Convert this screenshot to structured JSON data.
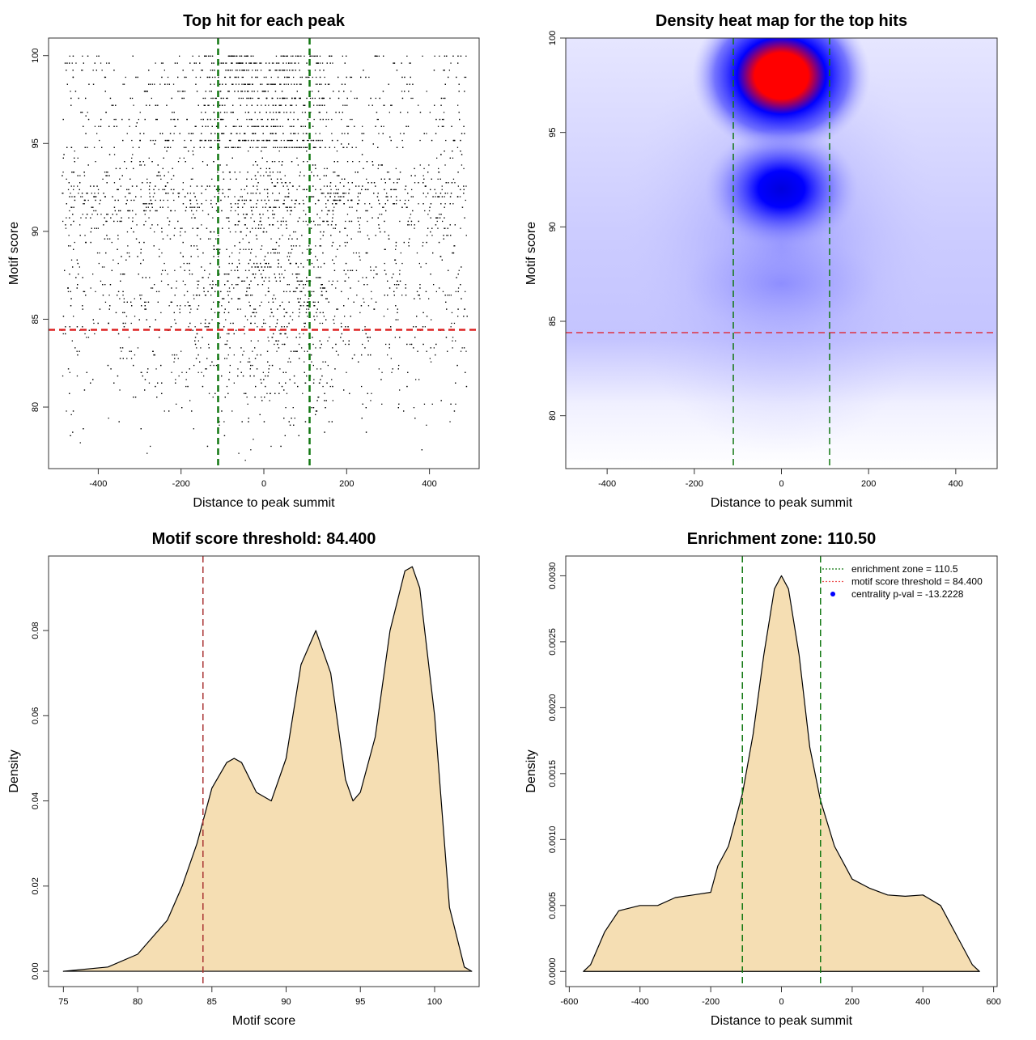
{
  "chart_data": [
    {
      "type": "scatter",
      "title": "Top hit for each peak",
      "xlabel": "Distance to peak summit",
      "ylabel": "Motif score",
      "xlim": [
        -520,
        520
      ],
      "ylim": [
        76.5,
        101
      ],
      "xticks": [
        -400,
        -200,
        0,
        200,
        400
      ],
      "yticks": [
        80,
        85,
        90,
        95,
        100
      ],
      "hlines": [
        {
          "y": 84.4,
          "color": "#dd2222",
          "style": "dashed"
        }
      ],
      "vlines": [
        {
          "x": -110.5,
          "color": "#117711",
          "style": "dashed"
        },
        {
          "x": 110.5,
          "color": "#117711",
          "style": "dashed"
        }
      ],
      "grid": false
    },
    {
      "type": "heatmap",
      "title": "Density heat map for the top hits",
      "xlabel": "Distance to peak summit",
      "ylabel": "Motif score",
      "xlim": [
        -495,
        495
      ],
      "ylim": [
        77.2,
        100
      ],
      "xticks": [
        -400,
        -200,
        0,
        200,
        400
      ],
      "yticks": [
        80,
        85,
        90,
        95,
        100
      ],
      "colors": [
        "#ffffff",
        "#0000ff",
        "#ff0000"
      ],
      "hotspots": [
        {
          "x": 0,
          "y": 98,
          "level": 1.0
        },
        {
          "x": 0,
          "y": 92,
          "level": 0.6
        },
        {
          "x": 0,
          "y": 87,
          "level": 0.25
        }
      ],
      "hlines": [
        {
          "y": 84.4,
          "color": "#dd3344",
          "style": "dashed"
        }
      ],
      "vlines": [
        {
          "x": -110.5,
          "color": "#117711",
          "style": "dashed"
        },
        {
          "x": 110.5,
          "color": "#117711",
          "style": "dashed"
        }
      ]
    },
    {
      "type": "area",
      "title": "Motif score threshold: 84.400",
      "xlabel": "Motif score",
      "ylabel": "Density",
      "xlim": [
        74,
        103
      ],
      "ylim": [
        -0.0036,
        0.0975
      ],
      "xticks": [
        75,
        80,
        85,
        90,
        95,
        100
      ],
      "yticks": [
        "0.00",
        "0.02",
        "0.04",
        "0.06",
        "0.08"
      ],
      "fill": "#f5deb3",
      "x": [
        75,
        78,
        80,
        81,
        82,
        83,
        84,
        85,
        86,
        86.5,
        87,
        88,
        89,
        90,
        91,
        92,
        93,
        94,
        94.5,
        95,
        96,
        97,
        98,
        98.5,
        99,
        100,
        101,
        102,
        102.5
      ],
      "y": [
        0,
        0.001,
        0.004,
        0.008,
        0.012,
        0.02,
        0.03,
        0.043,
        0.049,
        0.05,
        0.049,
        0.042,
        0.04,
        0.05,
        0.072,
        0.08,
        0.07,
        0.045,
        0.04,
        0.042,
        0.055,
        0.08,
        0.094,
        0.095,
        0.09,
        0.06,
        0.015,
        0.001,
        0
      ],
      "vlines": [
        {
          "x": 84.4,
          "color": "#aa3333",
          "style": "dashed"
        }
      ]
    },
    {
      "type": "area",
      "title": "Enrichment zone: 110.50",
      "xlabel": "Distance to peak summit",
      "ylabel": "Density",
      "xlim": [
        -610,
        610
      ],
      "ylim": [
        -0.000115,
        0.00315
      ],
      "xticks": [
        -600,
        -400,
        -200,
        0,
        200,
        400,
        600
      ],
      "yticks": [
        "0.0000",
        "0.0005",
        "0.0010",
        "0.0015",
        "0.0020",
        "0.0025",
        "0.0030"
      ],
      "fill": "#f5deb3",
      "x": [
        -560,
        -540,
        -500,
        -460,
        -400,
        -350,
        -300,
        -250,
        -200,
        -180,
        -150,
        -110,
        -80,
        -50,
        -20,
        0,
        20,
        50,
        80,
        110,
        150,
        200,
        250,
        300,
        350,
        400,
        450,
        500,
        540,
        560
      ],
      "y": [
        0,
        5e-05,
        0.0003,
        0.00046,
        0.0005,
        0.0005,
        0.00056,
        0.00058,
        0.0006,
        0.0008,
        0.00095,
        0.00135,
        0.0018,
        0.0024,
        0.0029,
        0.003,
        0.0029,
        0.0024,
        0.0017,
        0.0013,
        0.00095,
        0.0007,
        0.00063,
        0.00058,
        0.00057,
        0.00058,
        0.0005,
        0.00025,
        5e-05,
        0
      ],
      "vlines": [
        {
          "x": -110.5,
          "color": "#117711",
          "style": "dashed"
        },
        {
          "x": 110.5,
          "color": "#117711",
          "style": "dashed"
        }
      ],
      "legend": {
        "position": "top-right",
        "entries": [
          {
            "label": "enrichment zone = 110.5",
            "color": "#117711",
            "mark": "dotted-line"
          },
          {
            "label": "motif score threshold = 84.400",
            "color": "#ee5555",
            "mark": "dotted-line"
          },
          {
            "label": "centrality p-val = -13.2228",
            "color": "#0000ff",
            "mark": "point"
          }
        ]
      }
    }
  ]
}
